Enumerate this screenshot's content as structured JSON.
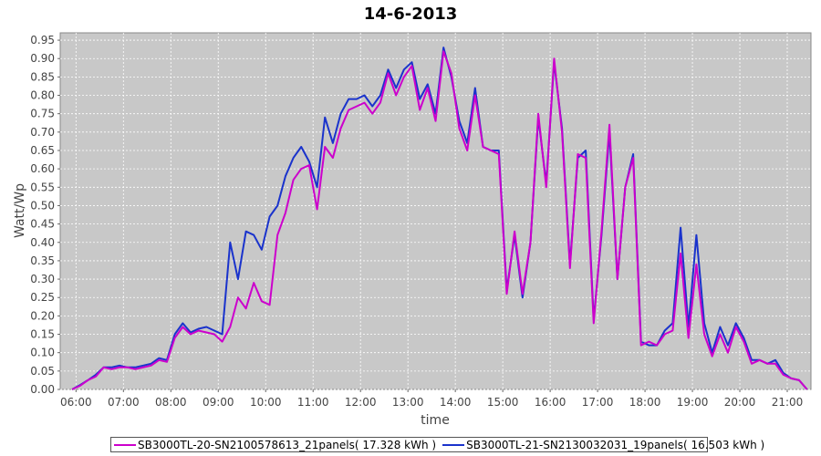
{
  "chart_data": {
    "type": "line",
    "title": "14-6-2013",
    "xlabel": "time",
    "ylabel": "Watt/Wp",
    "xlim": [
      "05:40",
      "21:30"
    ],
    "ylim": [
      0,
      0.97
    ],
    "x_ticks": [
      "06:00",
      "07:00",
      "08:00",
      "09:00",
      "10:00",
      "11:00",
      "12:00",
      "13:00",
      "14:00",
      "15:00",
      "16:00",
      "17:00",
      "18:00",
      "19:00",
      "20:00",
      "21:00"
    ],
    "y_ticks": [
      "0.00",
      "0.05",
      "0.10",
      "0.15",
      "0.20",
      "0.25",
      "0.30",
      "0.35",
      "0.40",
      "0.45",
      "0.50",
      "0.55",
      "0.60",
      "0.65",
      "0.70",
      "0.75",
      "0.80",
      "0.85",
      "0.90",
      "0.95"
    ],
    "grid": true,
    "legend_position": "bottom",
    "background_color": "#c8c8c8",
    "series": [
      {
        "name": "SB3000TL-20-SN2100578613_21panels( 17.328 kWh )",
        "color": "#cc00cc",
        "points": [
          [
            "05:55",
            0.0
          ],
          [
            "06:05",
            0.01
          ],
          [
            "06:15",
            0.025
          ],
          [
            "06:25",
            0.035
          ],
          [
            "06:35",
            0.06
          ],
          [
            "06:45",
            0.055
          ],
          [
            "06:55",
            0.06
          ],
          [
            "07:05",
            0.06
          ],
          [
            "07:15",
            0.055
          ],
          [
            "07:25",
            0.06
          ],
          [
            "07:35",
            0.065
          ],
          [
            "07:45",
            0.08
          ],
          [
            "07:55",
            0.075
          ],
          [
            "08:05",
            0.14
          ],
          [
            "08:15",
            0.17
          ],
          [
            "08:25",
            0.15
          ],
          [
            "08:35",
            0.16
          ],
          [
            "08:45",
            0.155
          ],
          [
            "08:55",
            0.15
          ],
          [
            "09:05",
            0.13
          ],
          [
            "09:15",
            0.17
          ],
          [
            "09:25",
            0.25
          ],
          [
            "09:35",
            0.22
          ],
          [
            "09:45",
            0.29
          ],
          [
            "09:55",
            0.24
          ],
          [
            "10:05",
            0.23
          ],
          [
            "10:15",
            0.42
          ],
          [
            "10:25",
            0.48
          ],
          [
            "10:35",
            0.57
          ],
          [
            "10:45",
            0.6
          ],
          [
            "10:55",
            0.61
          ],
          [
            "11:05",
            0.49
          ],
          [
            "11:15",
            0.66
          ],
          [
            "11:25",
            0.63
          ],
          [
            "11:35",
            0.71
          ],
          [
            "11:45",
            0.76
          ],
          [
            "11:55",
            0.77
          ],
          [
            "12:05",
            0.78
          ],
          [
            "12:15",
            0.75
          ],
          [
            "12:25",
            0.78
          ],
          [
            "12:35",
            0.86
          ],
          [
            "12:45",
            0.8
          ],
          [
            "12:55",
            0.85
          ],
          [
            "13:05",
            0.88
          ],
          [
            "13:15",
            0.76
          ],
          [
            "13:25",
            0.82
          ],
          [
            "13:35",
            0.73
          ],
          [
            "13:45",
            0.92
          ],
          [
            "13:55",
            0.86
          ],
          [
            "14:05",
            0.71
          ],
          [
            "14:15",
            0.65
          ],
          [
            "14:25",
            0.8
          ],
          [
            "14:35",
            0.66
          ],
          [
            "14:45",
            0.65
          ],
          [
            "14:55",
            0.64
          ],
          [
            "15:05",
            0.26
          ],
          [
            "15:15",
            0.43
          ],
          [
            "15:25",
            0.26
          ],
          [
            "15:35",
            0.4
          ],
          [
            "15:45",
            0.75
          ],
          [
            "15:55",
            0.55
          ],
          [
            "16:05",
            0.9
          ],
          [
            "16:15",
            0.7
          ],
          [
            "16:25",
            0.33
          ],
          [
            "16:35",
            0.64
          ],
          [
            "16:45",
            0.63
          ],
          [
            "16:55",
            0.18
          ],
          [
            "17:05",
            0.43
          ],
          [
            "17:15",
            0.72
          ],
          [
            "17:25",
            0.3
          ],
          [
            "17:35",
            0.55
          ],
          [
            "17:45",
            0.63
          ],
          [
            "17:55",
            0.12
          ],
          [
            "18:05",
            0.13
          ],
          [
            "18:15",
            0.12
          ],
          [
            "18:25",
            0.15
          ],
          [
            "18:35",
            0.16
          ],
          [
            "18:45",
            0.37
          ],
          [
            "18:55",
            0.14
          ],
          [
            "19:05",
            0.34
          ],
          [
            "19:15",
            0.15
          ],
          [
            "19:25",
            0.09
          ],
          [
            "19:35",
            0.15
          ],
          [
            "19:45",
            0.1
          ],
          [
            "19:55",
            0.17
          ],
          [
            "20:05",
            0.13
          ],
          [
            "20:15",
            0.07
          ],
          [
            "20:25",
            0.08
          ],
          [
            "20:35",
            0.07
          ],
          [
            "20:45",
            0.07
          ],
          [
            "20:55",
            0.04
          ],
          [
            "21:05",
            0.03
          ],
          [
            "21:15",
            0.025
          ],
          [
            "21:25",
            0.0
          ]
        ]
      },
      {
        "name": "SB3000TL-21-SN2130032031_19panels( 16.503 kWh )",
        "color": "#1a33cc",
        "points": [
          [
            "05:55",
            0.0
          ],
          [
            "06:05",
            0.012
          ],
          [
            "06:15",
            0.025
          ],
          [
            "06:25",
            0.04
          ],
          [
            "06:35",
            0.06
          ],
          [
            "06:45",
            0.06
          ],
          [
            "06:55",
            0.065
          ],
          [
            "07:05",
            0.06
          ],
          [
            "07:15",
            0.06
          ],
          [
            "07:25",
            0.065
          ],
          [
            "07:35",
            0.07
          ],
          [
            "07:45",
            0.085
          ],
          [
            "07:55",
            0.08
          ],
          [
            "08:05",
            0.15
          ],
          [
            "08:15",
            0.18
          ],
          [
            "08:25",
            0.155
          ],
          [
            "08:35",
            0.165
          ],
          [
            "08:45",
            0.17
          ],
          [
            "08:55",
            0.16
          ],
          [
            "09:05",
            0.15
          ],
          [
            "09:15",
            0.4
          ],
          [
            "09:25",
            0.3
          ],
          [
            "09:35",
            0.43
          ],
          [
            "09:45",
            0.42
          ],
          [
            "09:55",
            0.38
          ],
          [
            "10:05",
            0.47
          ],
          [
            "10:15",
            0.5
          ],
          [
            "10:25",
            0.58
          ],
          [
            "10:35",
            0.63
          ],
          [
            "10:45",
            0.66
          ],
          [
            "10:55",
            0.62
          ],
          [
            "11:05",
            0.55
          ],
          [
            "11:15",
            0.74
          ],
          [
            "11:25",
            0.67
          ],
          [
            "11:35",
            0.75
          ],
          [
            "11:45",
            0.79
          ],
          [
            "11:55",
            0.79
          ],
          [
            "12:05",
            0.8
          ],
          [
            "12:15",
            0.77
          ],
          [
            "12:25",
            0.8
          ],
          [
            "12:35",
            0.87
          ],
          [
            "12:45",
            0.82
          ],
          [
            "12:55",
            0.87
          ],
          [
            "13:05",
            0.89
          ],
          [
            "13:15",
            0.79
          ],
          [
            "13:25",
            0.83
          ],
          [
            "13:35",
            0.75
          ],
          [
            "13:45",
            0.93
          ],
          [
            "13:55",
            0.85
          ],
          [
            "14:05",
            0.73
          ],
          [
            "14:15",
            0.67
          ],
          [
            "14:25",
            0.82
          ],
          [
            "14:35",
            0.66
          ],
          [
            "14:45",
            0.65
          ],
          [
            "14:55",
            0.65
          ],
          [
            "15:05",
            0.27
          ],
          [
            "15:15",
            0.42
          ],
          [
            "15:25",
            0.25
          ],
          [
            "15:35",
            0.4
          ],
          [
            "15:45",
            0.74
          ],
          [
            "15:55",
            0.56
          ],
          [
            "16:05",
            0.89
          ],
          [
            "16:15",
            0.71
          ],
          [
            "16:25",
            0.34
          ],
          [
            "16:35",
            0.63
          ],
          [
            "16:45",
            0.65
          ],
          [
            "16:55",
            0.19
          ],
          [
            "17:05",
            0.42
          ],
          [
            "17:15",
            0.7
          ],
          [
            "17:25",
            0.3
          ],
          [
            "17:35",
            0.55
          ],
          [
            "17:45",
            0.64
          ],
          [
            "17:55",
            0.13
          ],
          [
            "18:05",
            0.12
          ],
          [
            "18:15",
            0.12
          ],
          [
            "18:25",
            0.16
          ],
          [
            "18:35",
            0.18
          ],
          [
            "18:45",
            0.44
          ],
          [
            "18:55",
            0.17
          ],
          [
            "19:05",
            0.42
          ],
          [
            "19:15",
            0.18
          ],
          [
            "19:25",
            0.1
          ],
          [
            "19:35",
            0.17
          ],
          [
            "19:45",
            0.12
          ],
          [
            "19:55",
            0.18
          ],
          [
            "20:05",
            0.14
          ],
          [
            "20:15",
            0.08
          ],
          [
            "20:25",
            0.08
          ],
          [
            "20:35",
            0.07
          ],
          [
            "20:45",
            0.08
          ],
          [
            "20:55",
            0.045
          ],
          [
            "21:05",
            0.03
          ],
          [
            "21:15",
            0.025
          ],
          [
            "21:25",
            0.0
          ]
        ]
      }
    ]
  }
}
